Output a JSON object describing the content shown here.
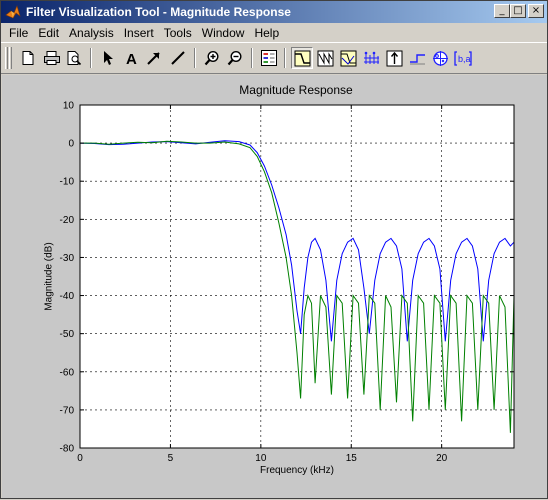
{
  "window": {
    "title": "Filter Visualization Tool - Magnitude Response",
    "controls": [
      "_",
      "□",
      "×"
    ]
  },
  "menu": [
    "File",
    "Edit",
    "Analysis",
    "Insert",
    "Tools",
    "Window",
    "Help"
  ],
  "toolbar": {
    "buttons": [
      {
        "name": "new-figure",
        "icon": "new-document-icon"
      },
      {
        "name": "print",
        "icon": "printer-icon"
      },
      {
        "name": "print-preview",
        "icon": "print-preview-icon"
      },
      {
        "name": "edit-plot",
        "icon": "arrow-pointer-icon"
      },
      {
        "name": "insert-text",
        "icon": "text-a-icon"
      },
      {
        "name": "insert-arrow",
        "icon": "arrow-icon"
      },
      {
        "name": "insert-line",
        "icon": "line-icon"
      },
      {
        "name": "zoom-in",
        "icon": "zoom-in-icon"
      },
      {
        "name": "zoom-out",
        "icon": "zoom-out-icon"
      },
      {
        "name": "legend",
        "icon": "legend-icon"
      },
      {
        "name": "magnitude-response",
        "icon": "magnitude-response-icon",
        "pressed": true
      },
      {
        "name": "phase-response",
        "icon": "phase-response-icon"
      },
      {
        "name": "magnitude-phase-response",
        "icon": "magnitude-phase-icon"
      },
      {
        "name": "group-delay",
        "icon": "group-delay-icon"
      },
      {
        "name": "impulse-response",
        "icon": "impulse-response-icon"
      },
      {
        "name": "step-response",
        "icon": "step-response-icon"
      },
      {
        "name": "pole-zero-plot",
        "icon": "pole-zero-icon"
      },
      {
        "name": "filter-coefficients",
        "icon": "coefficients-icon"
      }
    ]
  },
  "colors": {
    "series1": "#0000ff",
    "series2": "#008000",
    "titlebar_start": "#0a246a",
    "titlebar_end": "#a6caf0"
  },
  "chart_data": {
    "type": "line",
    "title": "Magnitude Response",
    "xlabel": "Frequency (kHz)",
    "ylabel": "Magnitude (dB)",
    "xlim": [
      0,
      24
    ],
    "ylim": [
      -80,
      10
    ],
    "xticks": [
      0,
      5,
      10,
      15,
      20
    ],
    "yticks": [
      10,
      0,
      -10,
      -20,
      -30,
      -40,
      -50,
      -60,
      -70,
      -80
    ],
    "grid": true,
    "series": [
      {
        "x": [
          0,
          0.8,
          1.6,
          2.4,
          3.2,
          4.0,
          4.8,
          5.6,
          6.4,
          7.2,
          8.0,
          8.8,
          9.4,
          9.8,
          10.2,
          10.6,
          11.0,
          11.4,
          11.7,
          12.0,
          12.2,
          12.4,
          12.6,
          12.8,
          13.0,
          13.3,
          13.6,
          13.9,
          14.2,
          14.5,
          14.8,
          15.1,
          15.4,
          15.7,
          16.0,
          16.3,
          16.6,
          16.9,
          17.2,
          17.5,
          17.8,
          18.1,
          18.4,
          18.7,
          19.0,
          19.3,
          19.6,
          19.9,
          20.2,
          20.5,
          20.8,
          21.1,
          21.4,
          21.7,
          22.0,
          22.3,
          22.6,
          22.9,
          23.2,
          23.5,
          23.8,
          24.0
        ],
        "y": [
          0,
          -0.1,
          -0.4,
          -0.3,
          0,
          0.3,
          0.4,
          0.1,
          -0.2,
          0.2,
          0.6,
          0.4,
          -0.5,
          -2.5,
          -6,
          -11,
          -17,
          -24,
          -32,
          -44,
          -50,
          -38,
          -30,
          -26,
          -25,
          -28,
          -36,
          -52,
          -36,
          -29,
          -26,
          -25,
          -28,
          -38,
          -50,
          -36,
          -29,
          -26,
          -25,
          -27,
          -33,
          -52,
          -36,
          -29,
          -26,
          -25,
          -27,
          -33,
          -52,
          -36,
          -29,
          -26,
          -25,
          -27,
          -33,
          -52,
          -36,
          -29,
          -26,
          -25,
          -27,
          -26
        ]
      },
      {
        "x": [
          0,
          0.8,
          1.6,
          2.4,
          3.2,
          4.0,
          4.8,
          5.6,
          6.4,
          7.2,
          8.0,
          8.8,
          9.4,
          9.8,
          10.2,
          10.6,
          11.0,
          11.4,
          11.7,
          12.0,
          12.2,
          12.4,
          12.6,
          12.8,
          13.0,
          13.3,
          13.6,
          13.9,
          14.2,
          14.5,
          14.8,
          15.1,
          15.4,
          15.7,
          16.0,
          16.3,
          16.6,
          16.9,
          17.2,
          17.5,
          17.8,
          18.1,
          18.4,
          18.7,
          19.0,
          19.3,
          19.6,
          19.9,
          20.2,
          20.5,
          20.8,
          21.1,
          21.4,
          21.7,
          22.0,
          22.3,
          22.6,
          22.9,
          23.2,
          23.5,
          23.8,
          24.0
        ],
        "y": [
          0,
          0,
          -0.3,
          0,
          0.2,
          0.1,
          0.5,
          0.3,
          0,
          0,
          0.3,
          -0.2,
          -1.2,
          -3.5,
          -7.5,
          -13,
          -21,
          -30,
          -40,
          -55,
          -67,
          -45,
          -40,
          -42,
          -63,
          -40,
          -43,
          -66,
          -40,
          -42,
          -67,
          -40,
          -42,
          -66,
          -40,
          -42,
          -70,
          -40,
          -43,
          -68,
          -40,
          -42,
          -73,
          -40,
          -42,
          -70,
          -40,
          -42,
          -70,
          -40,
          -42,
          -73,
          -40,
          -42,
          -70,
          -40,
          -42,
          -70,
          -40,
          -43,
          -76,
          -40
        ]
      }
    ]
  }
}
